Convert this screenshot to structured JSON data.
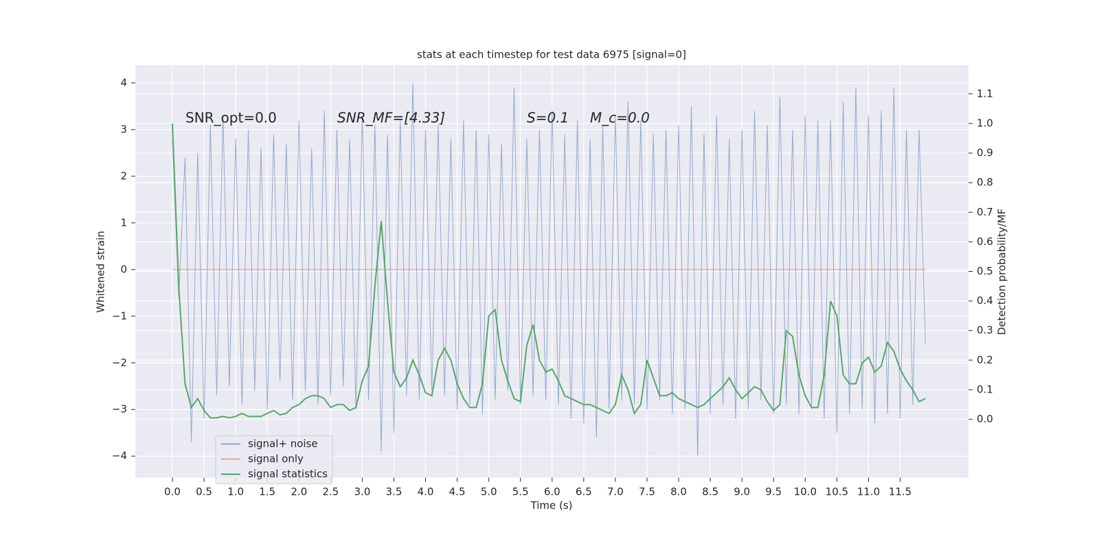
{
  "chart_data": {
    "type": "line",
    "title": "stats at each timestep for test data 6975 [signal=0]",
    "xlabel": "Time (s)",
    "ylabel": "Whitened strain",
    "y2label": "Detection probability/MF",
    "annotations": [
      "SNR_opt=0.0",
      "SNR_MF=[4.33]",
      "S=0.1",
      "M_c=0.0"
    ],
    "xlim": [
      -0.586,
      12.58
    ],
    "ylim": [
      -4.46,
      4.38
    ],
    "y2lim": [
      -0.197,
      1.197
    ],
    "xticks": [
      {
        "value": 0,
        "label": "0.0"
      },
      0.5,
      {
        "value": 1,
        "label": "1.0"
      },
      1.5,
      {
        "value": 2,
        "label": "2.0"
      },
      2.5,
      {
        "value": 3,
        "label": "3.0"
      },
      3.5,
      {
        "value": 4,
        "label": "4.0"
      },
      4.5,
      {
        "value": 5,
        "label": "5.0"
      },
      5.5,
      {
        "value": 6,
        "label": "6.0"
      },
      6.5,
      {
        "value": 7,
        "label": "7.0"
      },
      7.5,
      {
        "value": 8,
        "label": "8.0"
      },
      8.5,
      {
        "value": 9,
        "label": "9.0"
      },
      9.5,
      {
        "value": 10,
        "label": "10.0"
      },
      10.5,
      {
        "value": 11,
        "label": "11.0"
      },
      11.5
    ],
    "yticks": [
      {
        "value": -4,
        "label": "−4"
      },
      {
        "value": -3,
        "label": "−3"
      },
      {
        "value": -2,
        "label": "−2"
      },
      {
        "value": -1,
        "label": "−1"
      },
      0,
      1,
      2,
      3,
      4
    ],
    "y2ticks": [
      {
        "value": 0,
        "label": "0.0"
      },
      0.1,
      0.2,
      0.3,
      0.4,
      0.5,
      0.6,
      0.7,
      0.8,
      0.9,
      {
        "value": 1,
        "label": "1.0"
      },
      1.1
    ],
    "grid": true,
    "legend": "lower left",
    "x": [
      0,
      0.1,
      0.2,
      0.3,
      0.4,
      0.5,
      0.6,
      0.7,
      0.8,
      0.9,
      1,
      1.1,
      1.2,
      1.3,
      1.4,
      1.5,
      1.6,
      1.7,
      1.8,
      1.9,
      2,
      2.1,
      2.2,
      2.3,
      2.4,
      2.5,
      2.6,
      2.7,
      2.8,
      2.9,
      3,
      3.1,
      3.2,
      3.3,
      3.4,
      3.5,
      3.6,
      3.7,
      3.8,
      3.9,
      4,
      4.1,
      4.2,
      4.3,
      4.4,
      4.5,
      4.6,
      4.7,
      4.8,
      4.9,
      5,
      5.1,
      5.2,
      5.3,
      5.4,
      5.5,
      5.6,
      5.7,
      5.8,
      5.9,
      6,
      6.1,
      6.2,
      6.3,
      6.4,
      6.5,
      6.6,
      6.7,
      6.8,
      6.9,
      7,
      7.1,
      7.2,
      7.3,
      7.4,
      7.5,
      7.6,
      7.7,
      7.8,
      7.9,
      8,
      8.1,
      8.2,
      8.3,
      8.4,
      8.5,
      8.6,
      8.7,
      8.8,
      8.9,
      9,
      9.1,
      9.2,
      9.3,
      9.4,
      9.5,
      9.6,
      9.7,
      9.8,
      9.9,
      10,
      10.1,
      10.2,
      10.3,
      10.4,
      10.5,
      10.6,
      10.7,
      10.8,
      10.9,
      11,
      11.1,
      11.2,
      11.3,
      11.4,
      11.5,
      11.6,
      11.7,
      11.8,
      11.9
    ],
    "series": [
      {
        "name": "signal+ noise",
        "color": "#4c72b0",
        "values": [
          2.8,
          -0.6,
          2.4,
          -3.7,
          2.5,
          -3.2,
          3.1,
          -2.7,
          3.3,
          -2.5,
          2.8,
          -2.9,
          3.0,
          -2.6,
          2.6,
          -3.0,
          2.9,
          -2.4,
          2.7,
          -2.8,
          3.2,
          -2.6,
          2.6,
          -2.9,
          3.4,
          -2.7,
          3.0,
          -2.5,
          2.8,
          -3.0,
          3.3,
          -2.8,
          3.1,
          -3.9,
          2.9,
          -3.5,
          3.2,
          -2.7,
          4.0,
          -2.8,
          3.0,
          -2.6,
          3.1,
          -2.7,
          2.8,
          -3.0,
          3.2,
          -2.9,
          3.0,
          -3.1,
          2.9,
          -2.8,
          2.7,
          -2.6,
          3.9,
          -2.9,
          2.8,
          -2.7,
          3.0,
          -2.8,
          3.4,
          -2.9,
          2.9,
          -3.2,
          3.2,
          -3.3,
          2.8,
          -3.6,
          3.1,
          -3.0,
          3.3,
          -2.8,
          3.6,
          -2.9,
          3.2,
          -3.0,
          2.9,
          -2.8,
          3.0,
          -3.1,
          3.1,
          -3.0,
          3.5,
          -4.0,
          2.9,
          -3.1,
          3.3,
          -2.9,
          2.8,
          -3.2,
          3.0,
          -3.0,
          3.4,
          -2.8,
          3.1,
          -3.1,
          3.7,
          -2.9,
          3.0,
          -3.1,
          3.3,
          -3.0,
          3.2,
          -3.2,
          3.2,
          -3.5,
          3.6,
          -3.1,
          3.9,
          -3.0,
          3.3,
          -3.3,
          3.4,
          -3.1,
          3.9,
          -3.2,
          3.0,
          -2.9,
          3.0,
          -1.6
        ]
      },
      {
        "name": "signal only",
        "color": "#dd8452",
        "values": [
          0,
          0,
          0,
          0,
          0,
          0,
          0,
          0,
          0,
          0,
          0,
          0,
          0,
          0,
          0,
          0,
          0,
          0,
          0,
          0,
          0,
          0,
          0,
          0,
          0,
          0,
          0,
          0,
          0,
          0,
          0,
          0,
          0,
          0,
          0,
          0,
          0,
          0,
          0,
          0,
          0,
          0,
          0,
          0,
          0,
          0,
          0,
          0,
          0,
          0,
          0,
          0,
          0,
          0,
          0,
          0,
          0,
          0,
          0,
          0,
          0,
          0,
          0,
          0,
          0,
          0,
          0,
          0,
          0,
          0,
          0,
          0,
          0,
          0,
          0,
          0,
          0,
          0,
          0,
          0,
          0,
          0,
          0,
          0,
          0,
          0,
          0,
          0,
          0,
          0,
          0,
          0,
          0,
          0,
          0,
          0,
          0,
          0,
          0,
          0,
          0,
          0,
          0,
          0,
          0,
          0,
          0,
          0,
          0,
          0,
          0,
          0,
          0,
          0,
          0,
          0,
          0,
          0,
          0,
          0
        ]
      },
      {
        "name": "signal statistics",
        "color": "#55a868",
        "axis": "y2",
        "values": [
          1.0,
          0.45,
          0.12,
          0.04,
          0.07,
          0.03,
          0.005,
          0.005,
          0.01,
          0.005,
          0.01,
          0.02,
          0.01,
          0.01,
          0.01,
          0.02,
          0.03,
          0.015,
          0.02,
          0.04,
          0.05,
          0.07,
          0.08,
          0.08,
          0.07,
          0.04,
          0.05,
          0.05,
          0.03,
          0.04,
          0.13,
          0.18,
          0.45,
          0.67,
          0.4,
          0.16,
          0.11,
          0.14,
          0.2,
          0.15,
          0.09,
          0.08,
          0.2,
          0.24,
          0.2,
          0.12,
          0.07,
          0.04,
          0.04,
          0.12,
          0.35,
          0.37,
          0.2,
          0.13,
          0.07,
          0.06,
          0.25,
          0.32,
          0.2,
          0.16,
          0.17,
          0.13,
          0.08,
          0.07,
          0.06,
          0.05,
          0.05,
          0.04,
          0.03,
          0.02,
          0.05,
          0.15,
          0.1,
          0.02,
          0.05,
          0.2,
          0.14,
          0.08,
          0.08,
          0.09,
          0.07,
          0.06,
          0.05,
          0.04,
          0.05,
          0.07,
          0.09,
          0.11,
          0.14,
          0.1,
          0.07,
          0.09,
          0.11,
          0.1,
          0.06,
          0.03,
          0.05,
          0.3,
          0.28,
          0.15,
          0.08,
          0.04,
          0.04,
          0.15,
          0.4,
          0.35,
          0.15,
          0.12,
          0.12,
          0.19,
          0.21,
          0.16,
          0.18,
          0.26,
          0.23,
          0.17,
          0.13,
          0.1,
          0.06,
          0.07
        ]
      }
    ]
  }
}
